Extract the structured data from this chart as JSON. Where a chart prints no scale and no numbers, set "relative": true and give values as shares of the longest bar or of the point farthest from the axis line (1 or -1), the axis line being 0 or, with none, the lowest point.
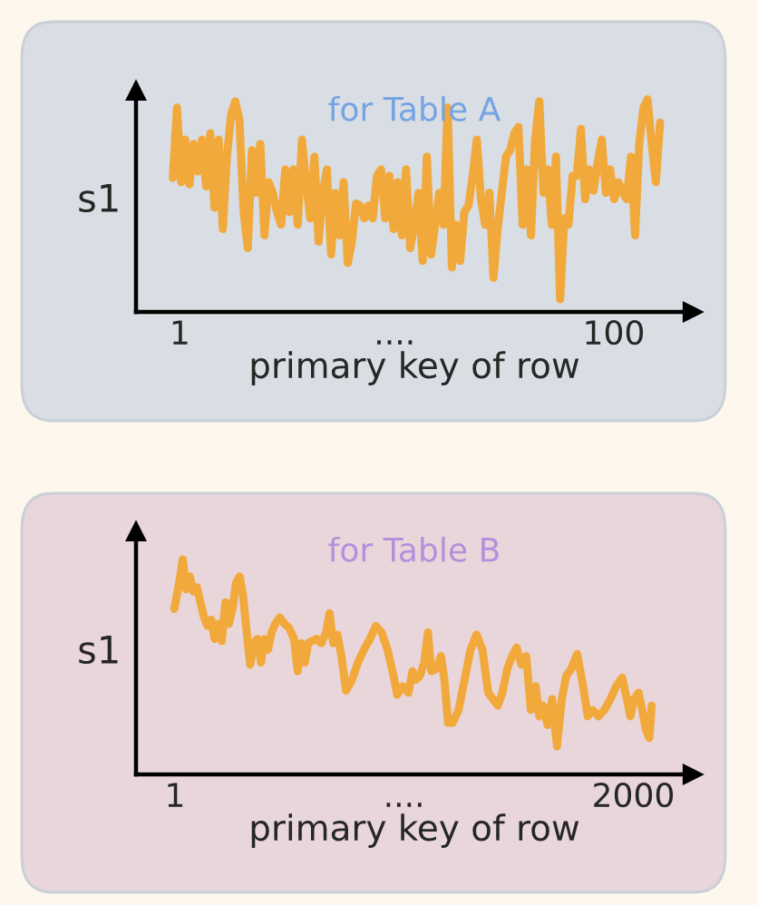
{
  "chart_data": [
    {
      "type": "line",
      "title": "for Table A",
      "xlabel": "primary key of row",
      "ylabel": "s1",
      "relative": true,
      "tick_labels": "x",
      "xlim": [
        -9,
        118
      ],
      "xticks": [
        1,
        {
          "value": 50,
          "label": "...."
        },
        100
      ],
      "x": [
        -0.6,
        0.35,
        1.3,
        2.25,
        3.2,
        4.15,
        5.1,
        6.05,
        7,
        7.95,
        8.9,
        9.85,
        10.8,
        11.75,
        12.7,
        13.65,
        14.6,
        15.55,
        16.5,
        17.45,
        18.4,
        19.35,
        20.3,
        21.25,
        22.2,
        23.15,
        24.1,
        25.05,
        26,
        26.95,
        27.9,
        28.85,
        29.8,
        30.75,
        31.7,
        32.65,
        33.6,
        34.55,
        35.5,
        36.45,
        37.4,
        38.35,
        39.3,
        40.25,
        41.2,
        42.15,
        43.1,
        44.05,
        45,
        45.95,
        46.9,
        47.85,
        48.8,
        49.75,
        50.7,
        51.65,
        52.6,
        53.55,
        54.5,
        55.45,
        56.4,
        57.35,
        58.3,
        59.25,
        60.2,
        61.15,
        62.1,
        63.05,
        64,
        64.95,
        65.9,
        66.85,
        67.8,
        68.75,
        69.7,
        70.65,
        71.6,
        72.55,
        73.5,
        74.45,
        75.4,
        76.35,
        77.3,
        78.25,
        79.2,
        80.15,
        81.1,
        82.05,
        83,
        83.95,
        84.9,
        85.85,
        86.8,
        87.75,
        88.7,
        89.65,
        90.6,
        91.55,
        92.5,
        93.45,
        94.4,
        95.35,
        96.3,
        97.25,
        98.2,
        99.15,
        100.1,
        101.05,
        102,
        102.95,
        103.9,
        104.85,
        105.8,
        106.75,
        107.7,
        108.65,
        109.6,
        110.55
      ],
      "series": [
        {
          "color": "#f2a93b",
          "values": [
            0.63,
            0.96,
            0.61,
            0.81,
            0.6,
            0.79,
            0.66,
            0.81,
            0.59,
            0.84,
            0.49,
            0.81,
            0.39,
            0.73,
            0.93,
            0.99,
            0.9,
            0.47,
            0.3,
            0.76,
            0.56,
            0.79,
            0.36,
            0.61,
            0.56,
            0.47,
            0.41,
            0.67,
            0.47,
            0.67,
            0.41,
            0.81,
            0.61,
            0.44,
            0.73,
            0.33,
            0.56,
            0.67,
            0.27,
            0.56,
            0.36,
            0.61,
            0.23,
            0.33,
            0.51,
            0.5,
            0.44,
            0.5,
            0.44,
            0.64,
            0.67,
            0.44,
            0.64,
            0.39,
            0.61,
            0.36,
            0.67,
            0.3,
            0.41,
            0.56,
            0.24,
            0.73,
            0.27,
            0.41,
            0.56,
            0.41,
            0.96,
            0.21,
            0.41,
            0.24,
            0.47,
            0.5,
            0.64,
            0.81,
            0.53,
            0.41,
            0.56,
            0.16,
            0.39,
            0.56,
            0.73,
            0.76,
            0.84,
            0.87,
            0.41,
            0.67,
            0.36,
            0.81,
            0.99,
            0.56,
            0.67,
            0.41,
            0.73,
            0.06,
            0.44,
            0.41,
            0.64,
            0.64,
            0.86,
            0.53,
            0.67,
            0.57,
            0.7,
            0.81,
            0.56,
            0.67,
            0.53,
            0.61,
            0.56,
            0.53,
            0.73,
            0.36,
            0.79,
            0.96,
            1.0,
            0.79,
            0.61,
            0.89
          ]
        }
      ]
    },
    {
      "type": "line",
      "title": "for Table B",
      "xlabel": "primary key of row",
      "ylabel": "s1",
      "relative": true,
      "tick_labels": "x",
      "xlim": [
        -169,
        2259
      ],
      "xticks": [
        1,
        {
          "value": 1000,
          "label": "...."
        },
        2000
      ],
      "x": [
        -2,
        19,
        35,
        50,
        66,
        81,
        97,
        112,
        128,
        143,
        159,
        174,
        190,
        205,
        221,
        236,
        252,
        267,
        283,
        298,
        314,
        329,
        345,
        360,
        376,
        391,
        407,
        422,
        438,
        458,
        479,
        500,
        520,
        536,
        551,
        567,
        582,
        598,
        618,
        639,
        660,
        675,
        691,
        709,
        727,
        747,
        773,
        799,
        825,
        851,
        877,
        902,
        928,
        954,
        970,
        993,
        1019,
        1037,
        1052,
        1070,
        1088,
        1104,
        1119,
        1140,
        1161,
        1176,
        1192,
        1212,
        1238,
        1264,
        1290,
        1316,
        1342,
        1367,
        1388,
        1409,
        1429,
        1450,
        1471,
        1491,
        1512,
        1533,
        1553,
        1574,
        1590,
        1605,
        1626,
        1646,
        1667,
        1688,
        1708,
        1729,
        1755,
        1781,
        1801,
        1822,
        1848,
        1874,
        1900,
        1925,
        1951,
        1972,
        1987,
        2003,
        2023,
        2039,
        2054,
        2070,
        2080
      ],
      "series": [
        {
          "color": "#f2a93b",
          "values": [
            0.77,
            0.89,
            1.0,
            0.86,
            0.92,
            0.85,
            0.87,
            0.8,
            0.73,
            0.69,
            0.72,
            0.63,
            0.7,
            0.62,
            0.8,
            0.7,
            0.77,
            0.89,
            0.92,
            0.83,
            0.66,
            0.51,
            0.61,
            0.63,
            0.52,
            0.63,
            0.58,
            0.66,
            0.7,
            0.73,
            0.7,
            0.68,
            0.63,
            0.48,
            0.61,
            0.52,
            0.61,
            0.62,
            0.63,
            0.61,
            0.66,
            0.75,
            0.61,
            0.65,
            0.55,
            0.39,
            0.44,
            0.52,
            0.58,
            0.63,
            0.69,
            0.66,
            0.58,
            0.46,
            0.37,
            0.41,
            0.38,
            0.48,
            0.44,
            0.46,
            0.52,
            0.66,
            0.48,
            0.49,
            0.55,
            0.44,
            0.24,
            0.24,
            0.3,
            0.44,
            0.58,
            0.65,
            0.58,
            0.38,
            0.35,
            0.32,
            0.38,
            0.49,
            0.55,
            0.59,
            0.51,
            0.55,
            0.3,
            0.41,
            0.27,
            0.32,
            0.23,
            0.35,
            0.13,
            0.35,
            0.46,
            0.49,
            0.56,
            0.41,
            0.27,
            0.3,
            0.27,
            0.3,
            0.35,
            0.41,
            0.45,
            0.35,
            0.27,
            0.35,
            0.38,
            0.3,
            0.21,
            0.17,
            0.32
          ]
        }
      ]
    }
  ]
}
